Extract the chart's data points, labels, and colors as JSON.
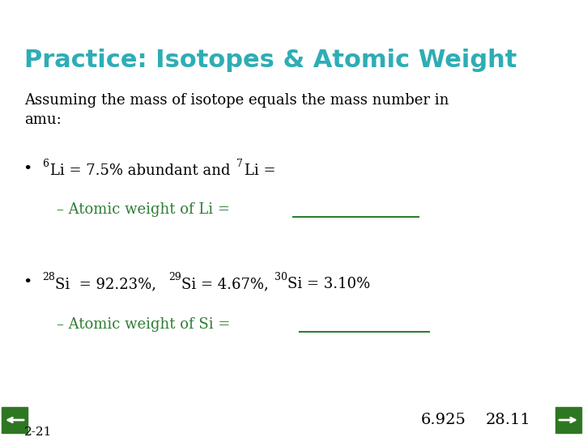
{
  "title": "Practice: Isotopes & Atomic Weight",
  "title_color": "#2EADB5",
  "title_fontsize": 22,
  "bg_color": "#FFFFFF",
  "body_text_color": "#000000",
  "green_text_color": "#2E7D32",
  "blue_text_color": "#2E7D32",
  "slide_number": "2-21",
  "answers": [
    "6.925",
    "28.11"
  ],
  "nav_color": "#2E7722"
}
